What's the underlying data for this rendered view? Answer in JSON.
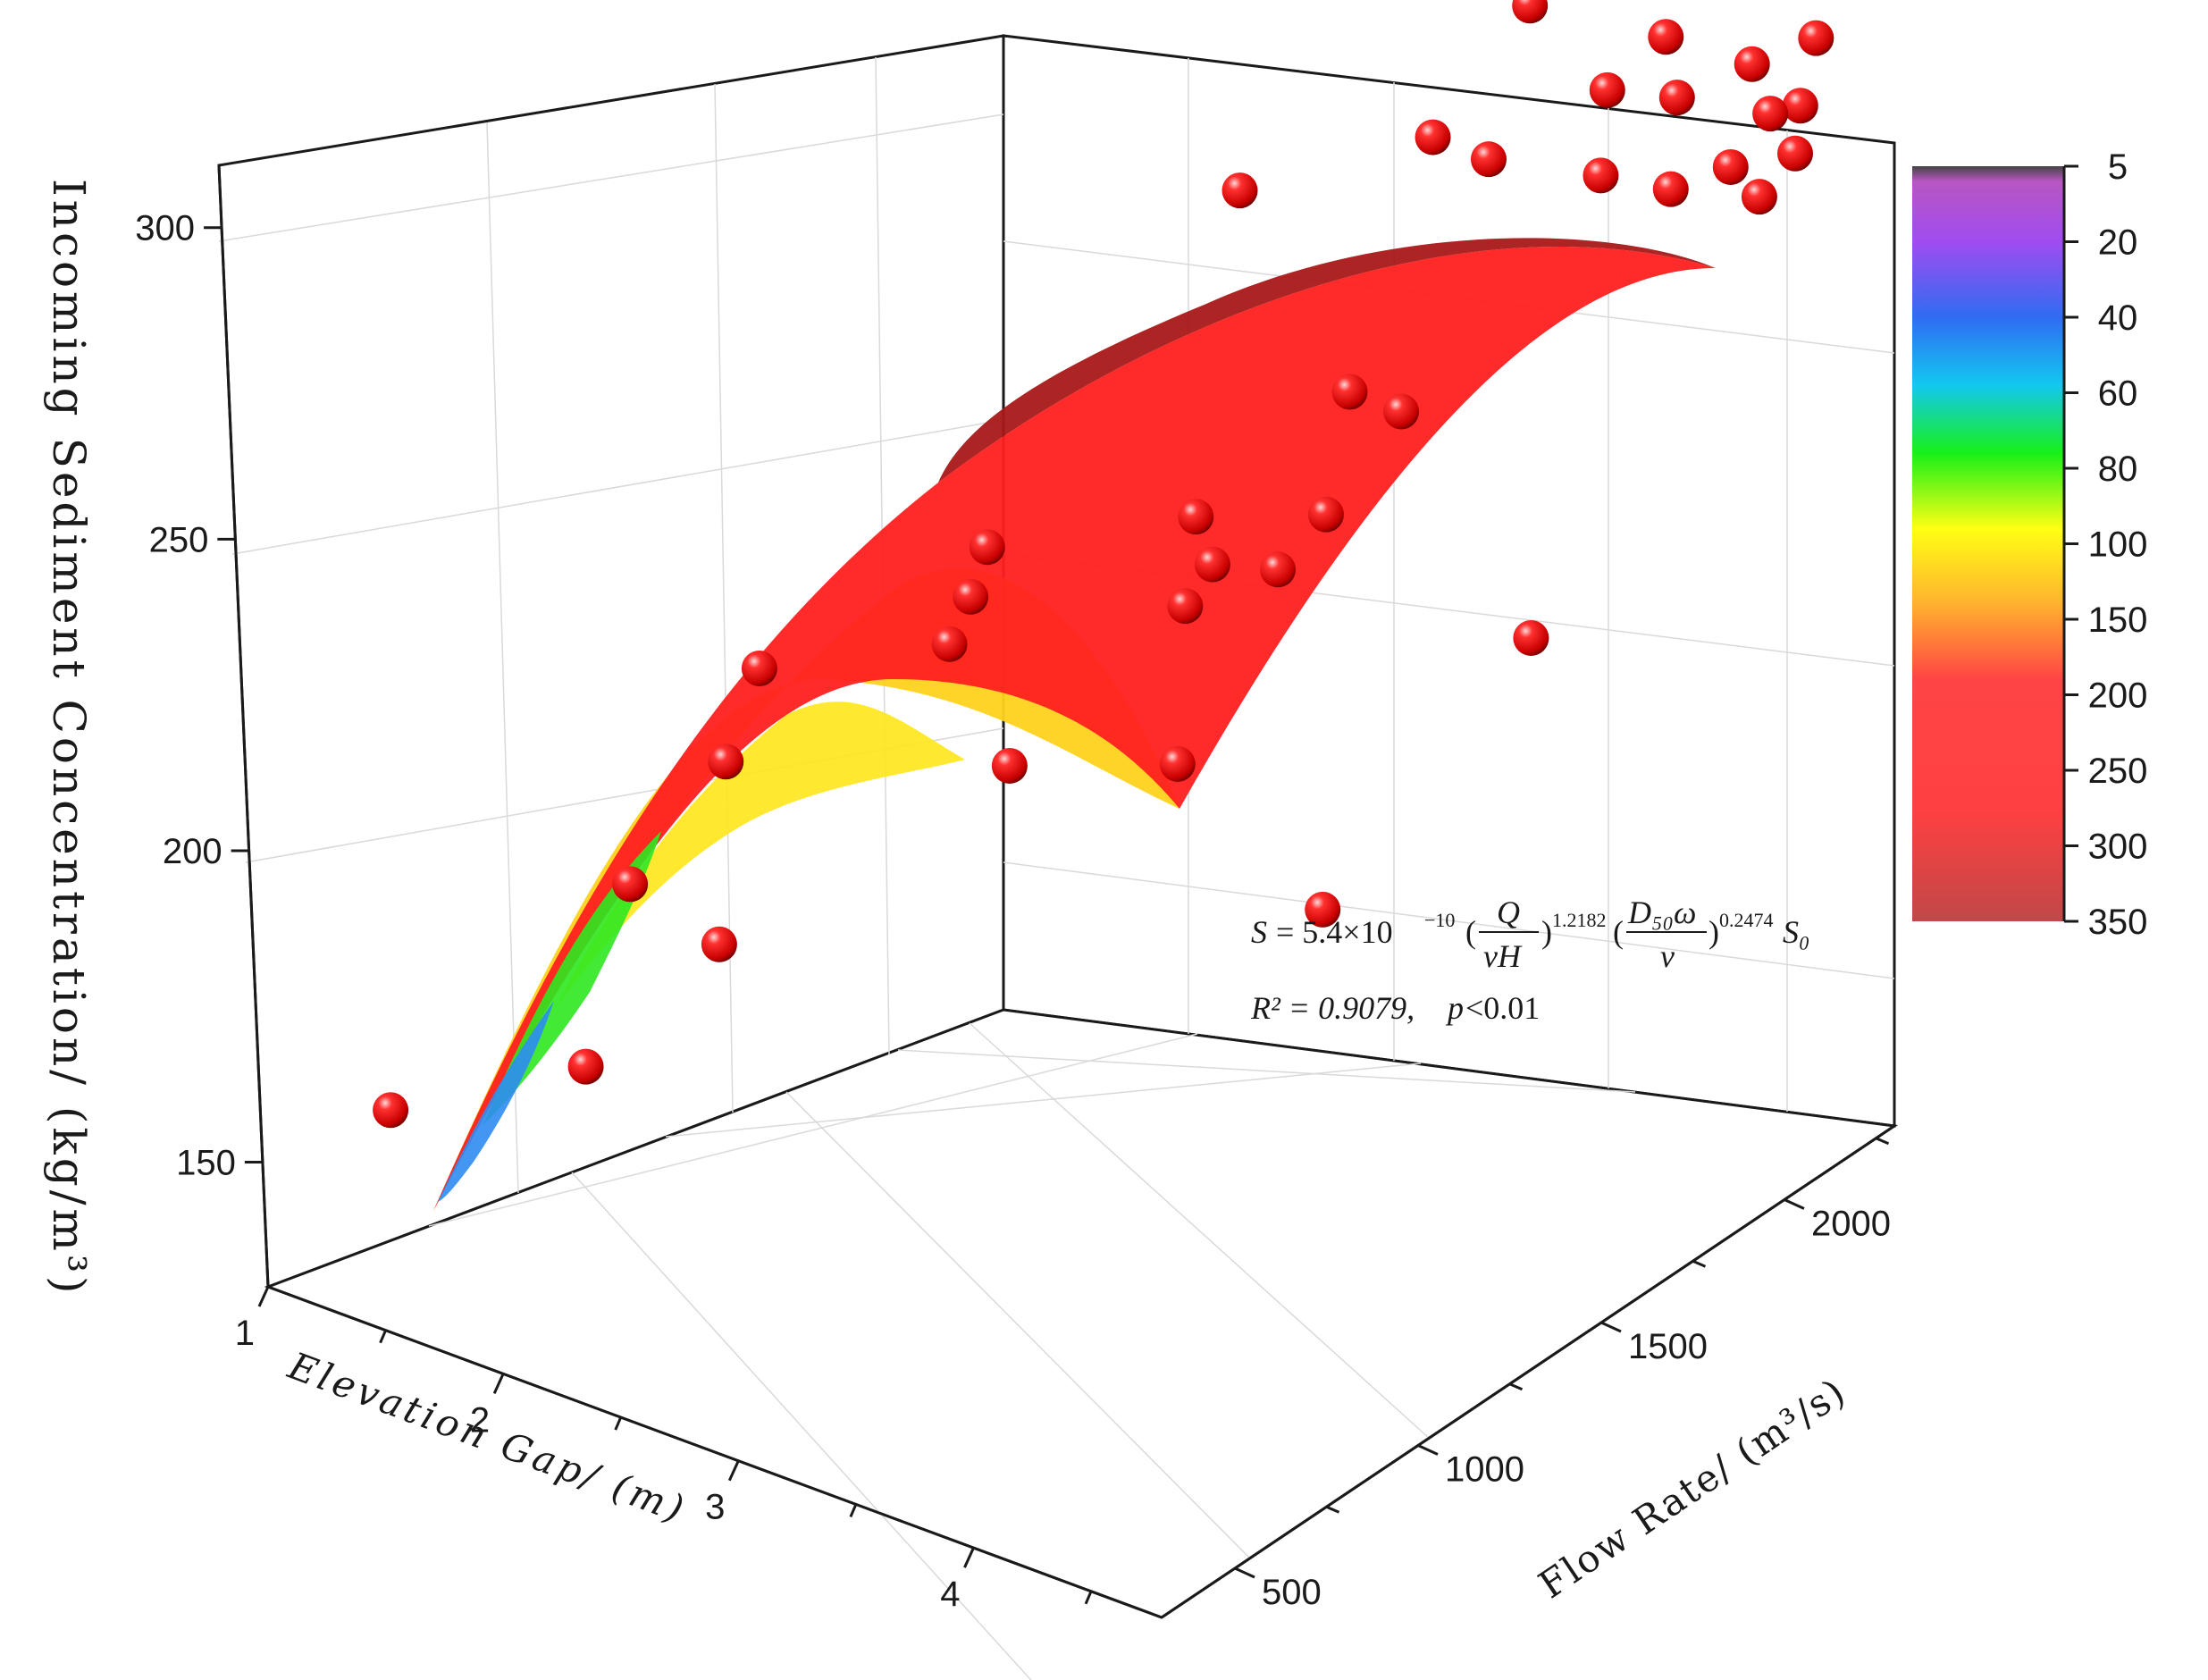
{
  "chart_data": {
    "type": "surface3d",
    "title": "",
    "xlabel": "Elevation Gap/ (m)",
    "ylabel": "Flow Rate/ (m³/s)",
    "zlabel": "Incoming Sediment Concentration/ (kg/m³)",
    "xlim": [
      1,
      4.8
    ],
    "ylim": [
      300,
      2300
    ],
    "zlim": [
      130,
      310
    ],
    "x_ticks": [
      "1",
      "2",
      "3",
      "4"
    ],
    "y_ticks": [
      "500",
      "1000",
      "1500",
      "2000"
    ],
    "z_ticks": [
      "150",
      "200",
      "250",
      "300"
    ],
    "grid": true,
    "colorbar": {
      "labels": [
        "5",
        "20",
        "40",
        "60",
        "80",
        "100",
        "150",
        "200",
        "250",
        "300",
        "350"
      ],
      "colors": [
        "#444444",
        "#cc4fd6",
        "#8a3af2",
        "#2f6cf2",
        "#12c8f0",
        "#18f018",
        "#ffff14",
        "#ffb12f",
        "#ff4444",
        "#ff4040",
        "#c84a4a"
      ]
    },
    "equation": {
      "lhs": "S",
      "coef": "= 5.4×10",
      "coef_exp": "−10",
      "f1_num": "Q",
      "f1_den": "νH",
      "exp1": "1.2182",
      "f2_num": "D₅₀ω",
      "f2_den": "ν",
      "exp2": "0.2474",
      "tail": "S₀",
      "r2_text": "R² = 0.9079, ",
      "p_text": "p",
      "p_value": "<0.01"
    },
    "series": [
      {
        "type": "scatter3d",
        "points": [
          {
            "x": 1.4,
            "y": 400,
            "z": 160
          },
          {
            "x": 1.6,
            "y": 800,
            "z": 154
          },
          {
            "x": 1.5,
            "y": 1000,
            "z": 174
          },
          {
            "x": 2.2,
            "y": 800,
            "z": 182
          },
          {
            "x": 2.1,
            "y": 900,
            "z": 206
          },
          {
            "x": 2.1,
            "y": 1000,
            "z": 217
          },
          {
            "x": 2.6,
            "y": 1200,
            "z": 220
          },
          {
            "x": 2.7,
            "y": 1200,
            "z": 229
          },
          {
            "x": 2.7,
            "y": 1250,
            "z": 235
          },
          {
            "x": 3.0,
            "y": 1100,
            "z": 210
          },
          {
            "x": 3.4,
            "y": 1300,
            "z": 208
          },
          {
            "x": 3.3,
            "y": 1400,
            "z": 228
          },
          {
            "x": 3.2,
            "y": 1500,
            "z": 237
          },
          {
            "x": 3.1,
            "y": 1600,
            "z": 224
          },
          {
            "x": 3.3,
            "y": 1650,
            "z": 224
          },
          {
            "x": 4.0,
            "y": 1300,
            "z": 193
          },
          {
            "x": 3.6,
            "y": 1600,
            "z": 239
          },
          {
            "x": 4.3,
            "y": 1700,
            "z": 225
          },
          {
            "x": 3.4,
            "y": 1800,
            "z": 248
          },
          {
            "x": 3.7,
            "y": 1750,
            "z": 251
          },
          {
            "x": 2.8,
            "y": 1900,
            "z": 268
          },
          {
            "x": 3.4,
            "y": 2050,
            "z": 279
          },
          {
            "x": 3.8,
            "y": 1950,
            "z": 285
          },
          {
            "x": 4.2,
            "y": 2000,
            "z": 286
          },
          {
            "x": 4.5,
            "y": 2000,
            "z": 288
          },
          {
            "x": 3.6,
            "y": 2200,
            "z": 297
          },
          {
            "x": 4.0,
            "y": 2150,
            "z": 291
          },
          {
            "x": 4.3,
            "y": 2150,
            "z": 294
          },
          {
            "x": 4.6,
            "y": 2100,
            "z": 289
          },
          {
            "x": 4.1,
            "y": 2250,
            "z": 297
          },
          {
            "x": 4.5,
            "y": 2230,
            "z": 299
          },
          {
            "x": 4.7,
            "y": 2280,
            "z": 304
          },
          {
            "x": 4.7,
            "y": 2150,
            "z": 297
          },
          {
            "x": 4.75,
            "y": 2200,
            "z": 297
          },
          {
            "x": 4.8,
            "y": 2050,
            "z": 289
          },
          {
            "x": 4.8,
            "y": 2150,
            "z": 292
          }
        ]
      }
    ]
  }
}
